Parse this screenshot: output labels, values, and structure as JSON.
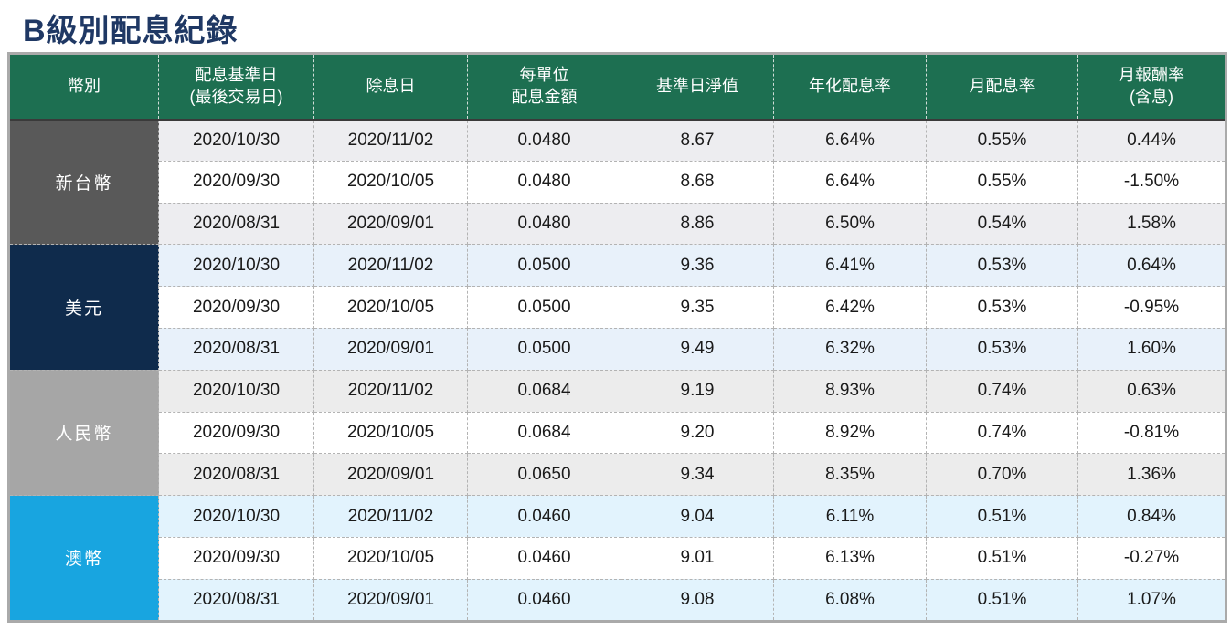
{
  "page": {
    "title": "B級別配息紀錄"
  },
  "colors": {
    "title_text": "#1f3864",
    "header_bg": "#1d6f51",
    "header_text": "#ffffff",
    "body_text": "#1a1a1a",
    "row_alt": "#ffffff",
    "outer_border": "#aaaaaa"
  },
  "table": {
    "headers": [
      "幣別",
      "配息基準日\n(最後交易日)",
      "除息日",
      "每單位\n配息金額",
      "基準日淨值",
      "年化配息率",
      "月配息率",
      "月報酬率\n(含息)"
    ],
    "groups": [
      {
        "currency": "新台幣",
        "color": "#595959",
        "stripe": "#ededf0",
        "rows": [
          [
            "2020/10/30",
            "2020/11/02",
            "0.0480",
            "8.67",
            "6.64%",
            "0.55%",
            "0.44%"
          ],
          [
            "2020/09/30",
            "2020/10/05",
            "0.0480",
            "8.68",
            "6.64%",
            "0.55%",
            "-1.50%"
          ],
          [
            "2020/08/31",
            "2020/09/01",
            "0.0480",
            "8.86",
            "6.50%",
            "0.54%",
            "1.58%"
          ]
        ]
      },
      {
        "currency": "美元",
        "color": "#0f2b4c",
        "stripe": "#e8f1fa",
        "rows": [
          [
            "2020/10/30",
            "2020/11/02",
            "0.0500",
            "9.36",
            "6.41%",
            "0.53%",
            "0.64%"
          ],
          [
            "2020/09/30",
            "2020/10/05",
            "0.0500",
            "9.35",
            "6.42%",
            "0.53%",
            "-0.95%"
          ],
          [
            "2020/08/31",
            "2020/09/01",
            "0.0500",
            "9.49",
            "6.32%",
            "0.53%",
            "1.60%"
          ]
        ]
      },
      {
        "currency": "人民幣",
        "color": "#a6a6a6",
        "stripe": "#ececec",
        "rows": [
          [
            "2020/10/30",
            "2020/11/02",
            "0.0684",
            "9.19",
            "8.93%",
            "0.74%",
            "0.63%"
          ],
          [
            "2020/09/30",
            "2020/10/05",
            "0.0684",
            "9.20",
            "8.92%",
            "0.74%",
            "-0.81%"
          ],
          [
            "2020/08/31",
            "2020/09/01",
            "0.0650",
            "9.34",
            "8.35%",
            "0.70%",
            "1.36%"
          ]
        ]
      },
      {
        "currency": "澳幣",
        "color": "#18a5e0",
        "stripe": "#e2f3fd",
        "rows": [
          [
            "2020/10/30",
            "2020/11/02",
            "0.0460",
            "9.04",
            "6.11%",
            "0.51%",
            "0.84%"
          ],
          [
            "2020/09/30",
            "2020/10/05",
            "0.0460",
            "9.01",
            "6.13%",
            "0.51%",
            "-0.27%"
          ],
          [
            "2020/08/31",
            "2020/09/01",
            "0.0460",
            "9.08",
            "6.08%",
            "0.51%",
            "1.07%"
          ]
        ]
      }
    ]
  }
}
